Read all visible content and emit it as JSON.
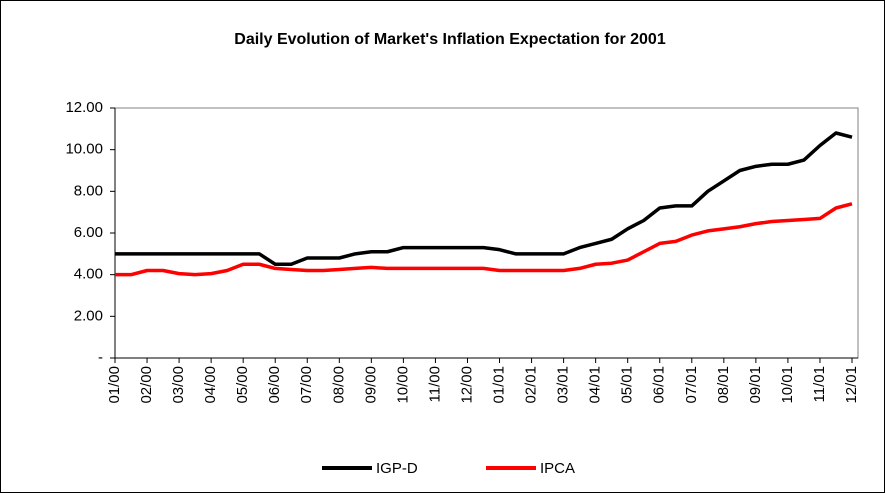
{
  "chart_data": {
    "type": "line",
    "title": "Daily Evolution of Market's Inflation Expectation for 2001",
    "categories": [
      "01/00",
      null,
      "02/00",
      null,
      "03/00",
      null,
      "04/00",
      null,
      "05/00",
      null,
      "06/00",
      null,
      "07/00",
      null,
      "08/00",
      null,
      "09/00",
      null,
      "10/00",
      null,
      "11/00",
      null,
      "12/00",
      null,
      "01/01",
      null,
      "02/01",
      null,
      "03/01",
      null,
      "04/01",
      null,
      "05/01",
      null,
      "06/01",
      null,
      "07/01",
      null,
      "08/01",
      null,
      "09/01",
      null,
      "10/01",
      null,
      "11/01",
      null,
      "12/01"
    ],
    "series": [
      {
        "name": "IGP-D",
        "color": "#000000",
        "values": [
          5.0,
          5.0,
          5.0,
          5.0,
          5.0,
          5.0,
          5.0,
          5.0,
          5.0,
          5.0,
          4.5,
          4.5,
          4.8,
          4.8,
          4.8,
          5.0,
          5.1,
          5.1,
          5.3,
          5.3,
          5.3,
          5.3,
          5.3,
          5.3,
          5.2,
          5.0,
          5.0,
          5.0,
          5.0,
          5.3,
          5.5,
          5.7,
          6.2,
          6.6,
          7.2,
          7.3,
          7.3,
          8.0,
          8.5,
          9.0,
          9.2,
          9.3,
          9.3,
          9.5,
          10.2,
          10.8,
          10.6
        ]
      },
      {
        "name": "IPCA",
        "color": "#ff0000",
        "values": [
          4.0,
          4.0,
          4.2,
          4.2,
          4.05,
          4.0,
          4.05,
          4.2,
          4.5,
          4.5,
          4.3,
          4.25,
          4.2,
          4.2,
          4.25,
          4.3,
          4.35,
          4.3,
          4.3,
          4.3,
          4.3,
          4.3,
          4.3,
          4.3,
          4.2,
          4.2,
          4.2,
          4.2,
          4.2,
          4.3,
          4.5,
          4.55,
          4.7,
          5.1,
          5.5,
          5.6,
          5.9,
          6.1,
          6.2,
          6.3,
          6.45,
          6.55,
          6.6,
          6.65,
          6.7,
          7.2,
          7.4
        ]
      }
    ],
    "ylim": [
      0,
      12
    ],
    "yticks": [
      {
        "value": 0,
        "label": "-"
      },
      {
        "value": 2,
        "label": "2.00"
      },
      {
        "value": 4,
        "label": "4.00"
      },
      {
        "value": 6,
        "label": "6.00"
      },
      {
        "value": 8,
        "label": "8.00"
      },
      {
        "value": 10,
        "label": "10.00"
      },
      {
        "value": 12,
        "label": "12.00"
      }
    ],
    "legend": "bottom"
  }
}
